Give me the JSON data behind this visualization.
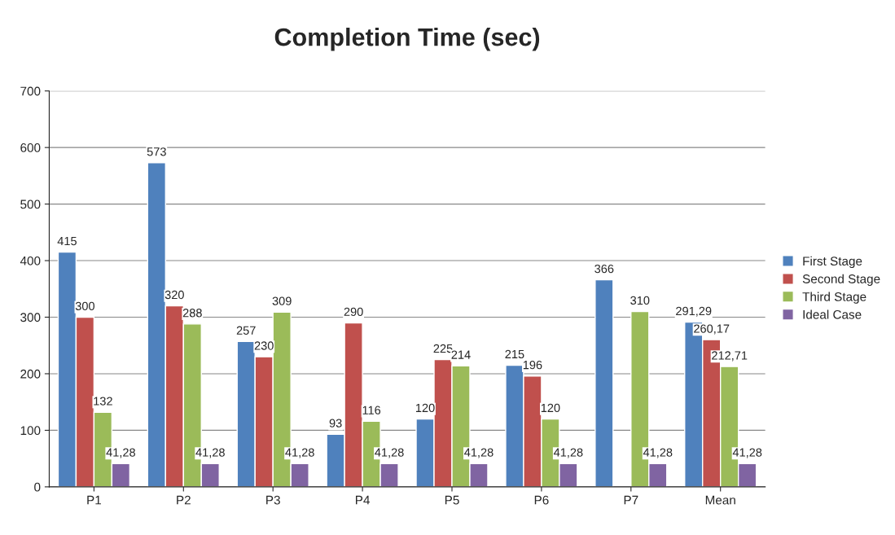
{
  "chart_data": {
    "type": "bar",
    "title": "Completion Time (sec)",
    "categories": [
      "P1",
      "P2",
      "P3",
      "P4",
      "P5",
      "P6",
      "P7",
      "Mean"
    ],
    "series": [
      {
        "name": "First Stage",
        "color": "#4f81bd",
        "values": [
          415,
          573,
          257,
          93,
          120,
          215,
          366,
          291.29
        ],
        "value_labels": [
          "415",
          "573",
          "257",
          "93",
          "120",
          "215",
          "366",
          "291,29"
        ]
      },
      {
        "name": "Second Stage",
        "color": "#c0504d",
        "values": [
          300,
          320,
          230,
          290,
          225,
          196,
          null,
          260.17
        ],
        "value_labels": [
          "300",
          "320",
          "230",
          "290",
          "225",
          "196",
          null,
          "260,17"
        ]
      },
      {
        "name": "Third Stage",
        "color": "#9bbb59",
        "values": [
          132,
          288,
          309,
          116,
          214,
          120,
          310,
          212.71
        ],
        "value_labels": [
          "132",
          "288",
          "309",
          "116",
          "214",
          "120",
          "310",
          "212,71"
        ]
      },
      {
        "name": "Ideal Case",
        "color": "#8064a2",
        "values": [
          41.28,
          41.28,
          41.28,
          41.28,
          41.28,
          41.28,
          41.28,
          41.28
        ],
        "value_labels": [
          "41,28",
          "41,28",
          "41,28",
          "41,28",
          "41,28",
          "41,28",
          "41,28",
          "41,28"
        ]
      }
    ],
    "ylim": [
      0,
      700
    ],
    "yticks": [
      0,
      100,
      200,
      300,
      400,
      500,
      600,
      700
    ],
    "grid": "y",
    "legend": "right"
  }
}
